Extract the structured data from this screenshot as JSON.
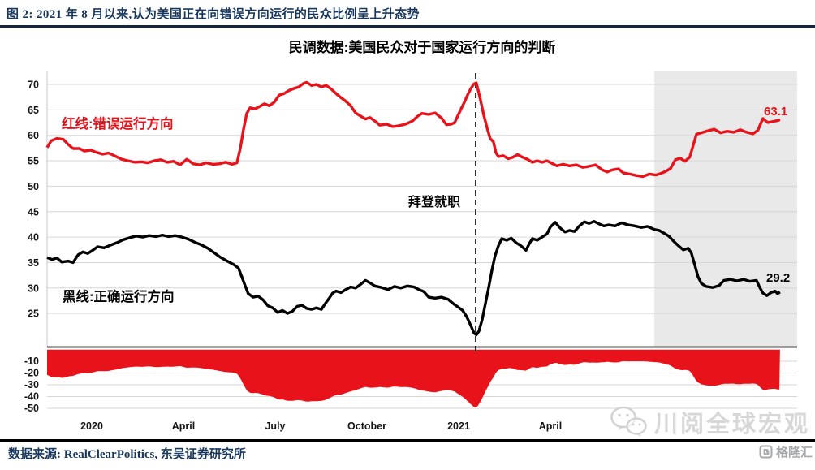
{
  "figure": {
    "caption": "图 2:  2021 年 8 月以来,认为美国正在向错误方向运行的民众比例呈上升态势",
    "chart_title": "民调数据:美国民众对于国家运行方向的判断",
    "source": "数据来源: RealClearPolitics, 东吴证券研究所",
    "watermark_text": "川阅全球宏观",
    "logo_text": "格隆汇"
  },
  "colors": {
    "red": "#e8121a",
    "black": "#000000",
    "navy": "#17375e",
    "grid": "#d6d6d6",
    "axis_gray": "#c9c9c9",
    "zero_line": "#4a4a4a",
    "region": "#e9e9e9",
    "watermark": "#d7d7d7",
    "logo_gray": "#97999c"
  },
  "chart_data": {
    "type": "line",
    "title": "民调数据:美国民众对于国家运行方向的判断",
    "x_axis": {
      "tick_labels": [
        "2020",
        "April",
        "July",
        "October",
        "2021",
        "April"
      ],
      "tick_positions_months": [
        0,
        3,
        6,
        9,
        12,
        15
      ],
      "range_months": [
        -1.46,
        23.07
      ],
      "note_unit": "months since Jan 2020"
    },
    "y_axis_upper": {
      "ticks": [
        70,
        65,
        60,
        55,
        50,
        45,
        40,
        35,
        30,
        25
      ],
      "range": [
        18.5,
        72.5
      ],
      "unit": "%"
    },
    "y_axis_lower": {
      "ticks": [
        -10,
        -20,
        -30,
        -40,
        -50
      ],
      "range": [
        -55,
        0
      ],
      "unit": "%"
    },
    "annotation": {
      "text": "拜登就职",
      "x_months": 12.56
    },
    "highlight_region": {
      "start_months": 18.4,
      "end_months": 23.07
    },
    "legend_position": "in-plot text labels",
    "grid": true,
    "series": [
      {
        "name": "红线:错误运行方向",
        "color_key": "red",
        "end_label": "63.1",
        "points": [
          [
            -1.46,
            57.6
          ],
          [
            -1.33,
            58.9
          ],
          [
            -1.14,
            59.4
          ],
          [
            -0.93,
            59.2
          ],
          [
            -0.77,
            58.2
          ],
          [
            -0.61,
            57.4
          ],
          [
            -0.4,
            57.4
          ],
          [
            -0.24,
            56.9
          ],
          [
            -0.03,
            57.1
          ],
          [
            0.13,
            56.7
          ],
          [
            0.35,
            56.3
          ],
          [
            0.56,
            56.5
          ],
          [
            0.77,
            55.9
          ],
          [
            0.98,
            55.3
          ],
          [
            1.19,
            55.0
          ],
          [
            1.41,
            54.7
          ],
          [
            1.62,
            54.8
          ],
          [
            1.83,
            54.6
          ],
          [
            2.04,
            55.0
          ],
          [
            2.26,
            55.2
          ],
          [
            2.47,
            54.7
          ],
          [
            2.68,
            54.9
          ],
          [
            2.89,
            54.2
          ],
          [
            3.11,
            55.3
          ],
          [
            3.32,
            54.4
          ],
          [
            3.53,
            54.2
          ],
          [
            3.74,
            54.6
          ],
          [
            3.96,
            54.3
          ],
          [
            4.17,
            54.4
          ],
          [
            4.38,
            54.7
          ],
          [
            4.59,
            54.3
          ],
          [
            4.75,
            54.6
          ],
          [
            4.86,
            57.5
          ],
          [
            4.96,
            61.0
          ],
          [
            5.07,
            64.3
          ],
          [
            5.18,
            65.4
          ],
          [
            5.34,
            65.2
          ],
          [
            5.5,
            65.7
          ],
          [
            5.65,
            66.2
          ],
          [
            5.81,
            65.8
          ],
          [
            5.97,
            66.5
          ],
          [
            6.13,
            67.9
          ],
          [
            6.29,
            68.2
          ],
          [
            6.45,
            68.8
          ],
          [
            6.61,
            69.2
          ],
          [
            6.77,
            69.5
          ],
          [
            6.93,
            70.2
          ],
          [
            7.03,
            70.4
          ],
          [
            7.19,
            69.8
          ],
          [
            7.35,
            70.0
          ],
          [
            7.51,
            69.5
          ],
          [
            7.67,
            69.8
          ],
          [
            7.83,
            69.1
          ],
          [
            7.99,
            68.2
          ],
          [
            8.15,
            67.4
          ],
          [
            8.31,
            66.7
          ],
          [
            8.47,
            65.8
          ],
          [
            8.63,
            64.4
          ],
          [
            8.79,
            63.8
          ],
          [
            8.95,
            63.2
          ],
          [
            9.1,
            63.5
          ],
          [
            9.26,
            62.8
          ],
          [
            9.42,
            62.0
          ],
          [
            9.64,
            62.2
          ],
          [
            9.85,
            61.7
          ],
          [
            10.06,
            61.9
          ],
          [
            10.27,
            62.2
          ],
          [
            10.49,
            62.8
          ],
          [
            10.65,
            63.7
          ],
          [
            10.8,
            64.3
          ],
          [
            11.02,
            64.1
          ],
          [
            11.23,
            64.4
          ],
          [
            11.44,
            63.4
          ],
          [
            11.6,
            62.1
          ],
          [
            11.76,
            62.2
          ],
          [
            11.87,
            62.5
          ],
          [
            11.97,
            63.8
          ],
          [
            12.08,
            65.2
          ],
          [
            12.19,
            66.5
          ],
          [
            12.29,
            67.9
          ],
          [
            12.4,
            69.2
          ],
          [
            12.5,
            70.1
          ],
          [
            12.58,
            70.3
          ],
          [
            12.66,
            68.3
          ],
          [
            12.74,
            66.2
          ],
          [
            12.82,
            64.0
          ],
          [
            12.93,
            61.5
          ],
          [
            13.03,
            59.4
          ],
          [
            13.14,
            58.7
          ],
          [
            13.22,
            56.6
          ],
          [
            13.3,
            55.8
          ],
          [
            13.46,
            56.0
          ],
          [
            13.62,
            55.4
          ],
          [
            13.77,
            55.7
          ],
          [
            13.93,
            56.2
          ],
          [
            14.09,
            55.7
          ],
          [
            14.25,
            55.3
          ],
          [
            14.41,
            54.7
          ],
          [
            14.57,
            55.0
          ],
          [
            14.73,
            54.7
          ],
          [
            14.89,
            55.0
          ],
          [
            15.05,
            54.5
          ],
          [
            15.21,
            54.0
          ],
          [
            15.42,
            54.3
          ],
          [
            15.63,
            54.0
          ],
          [
            15.85,
            54.2
          ],
          [
            16.06,
            53.7
          ],
          [
            16.27,
            53.9
          ],
          [
            16.48,
            54.2
          ],
          [
            16.7,
            53.2
          ],
          [
            16.86,
            52.8
          ],
          [
            17.02,
            53.2
          ],
          [
            17.23,
            53.4
          ],
          [
            17.39,
            52.6
          ],
          [
            17.6,
            52.4
          ],
          [
            17.81,
            52.1
          ],
          [
            18.02,
            51.9
          ],
          [
            18.24,
            52.4
          ],
          [
            18.45,
            52.2
          ],
          [
            18.61,
            52.5
          ],
          [
            18.77,
            52.9
          ],
          [
            18.93,
            53.5
          ],
          [
            19.09,
            55.2
          ],
          [
            19.25,
            55.5
          ],
          [
            19.4,
            54.9
          ],
          [
            19.56,
            55.7
          ],
          [
            19.67,
            58.0
          ],
          [
            19.78,
            60.2
          ],
          [
            19.94,
            60.5
          ],
          [
            20.15,
            60.9
          ],
          [
            20.36,
            61.2
          ],
          [
            20.57,
            60.5
          ],
          [
            20.78,
            60.8
          ],
          [
            21.0,
            60.6
          ],
          [
            21.21,
            61.1
          ],
          [
            21.42,
            60.6
          ],
          [
            21.63,
            60.3
          ],
          [
            21.79,
            61.0
          ],
          [
            21.95,
            63.3
          ],
          [
            22.11,
            62.5
          ],
          [
            22.27,
            62.7
          ],
          [
            22.43,
            62.9
          ],
          [
            22.51,
            63.1
          ]
        ]
      },
      {
        "name": "黑线:正确运行方向",
        "color_key": "black",
        "end_label": "29.2",
        "points": [
          [
            -1.46,
            36.0
          ],
          [
            -1.3,
            35.6
          ],
          [
            -1.14,
            35.9
          ],
          [
            -0.98,
            35.1
          ],
          [
            -0.77,
            35.3
          ],
          [
            -0.61,
            35.0
          ],
          [
            -0.45,
            36.5
          ],
          [
            -0.29,
            37.1
          ],
          [
            -0.13,
            36.8
          ],
          [
            0.03,
            37.4
          ],
          [
            0.19,
            38.1
          ],
          [
            0.4,
            37.9
          ],
          [
            0.61,
            38.4
          ],
          [
            0.82,
            38.9
          ],
          [
            1.04,
            39.5
          ],
          [
            1.25,
            39.9
          ],
          [
            1.46,
            40.2
          ],
          [
            1.67,
            40.0
          ],
          [
            1.88,
            40.3
          ],
          [
            2.1,
            40.1
          ],
          [
            2.31,
            40.4
          ],
          [
            2.52,
            40.1
          ],
          [
            2.73,
            40.3
          ],
          [
            2.95,
            40.0
          ],
          [
            3.16,
            39.6
          ],
          [
            3.37,
            39.0
          ],
          [
            3.58,
            38.5
          ],
          [
            3.8,
            37.8
          ],
          [
            4.01,
            36.9
          ],
          [
            4.22,
            36.0
          ],
          [
            4.43,
            35.3
          ],
          [
            4.65,
            34.6
          ],
          [
            4.8,
            33.9
          ],
          [
            4.91,
            32.2
          ],
          [
            5.02,
            30.4
          ],
          [
            5.12,
            28.9
          ],
          [
            5.28,
            28.2
          ],
          [
            5.44,
            28.4
          ],
          [
            5.6,
            27.7
          ],
          [
            5.76,
            26.5
          ],
          [
            5.92,
            26.1
          ],
          [
            6.08,
            25.2
          ],
          [
            6.24,
            25.6
          ],
          [
            6.4,
            25.0
          ],
          [
            6.56,
            25.4
          ],
          [
            6.72,
            26.4
          ],
          [
            6.88,
            26.6
          ],
          [
            7.03,
            26.0
          ],
          [
            7.19,
            25.8
          ],
          [
            7.35,
            26.1
          ],
          [
            7.51,
            25.8
          ],
          [
            7.67,
            27.2
          ],
          [
            7.78,
            28.1
          ],
          [
            7.88,
            29.0
          ],
          [
            7.99,
            29.4
          ],
          [
            8.15,
            29.1
          ],
          [
            8.31,
            29.7
          ],
          [
            8.47,
            30.2
          ],
          [
            8.63,
            30.0
          ],
          [
            8.79,
            30.7
          ],
          [
            8.95,
            31.5
          ],
          [
            9.1,
            31.0
          ],
          [
            9.26,
            30.4
          ],
          [
            9.48,
            30.1
          ],
          [
            9.69,
            29.7
          ],
          [
            9.9,
            30.3
          ],
          [
            10.11,
            30.0
          ],
          [
            10.33,
            30.4
          ],
          [
            10.54,
            30.2
          ],
          [
            10.7,
            29.7
          ],
          [
            10.86,
            29.3
          ],
          [
            11.02,
            28.2
          ],
          [
            11.23,
            28.0
          ],
          [
            11.44,
            28.2
          ],
          [
            11.65,
            27.8
          ],
          [
            11.81,
            27.0
          ],
          [
            11.97,
            26.3
          ],
          [
            12.13,
            25.6
          ],
          [
            12.26,
            24.4
          ],
          [
            12.4,
            22.6
          ],
          [
            12.5,
            21.2
          ],
          [
            12.58,
            20.8
          ],
          [
            12.66,
            21.5
          ],
          [
            12.77,
            23.8
          ],
          [
            12.87,
            26.8
          ],
          [
            12.98,
            30.0
          ],
          [
            13.09,
            33.5
          ],
          [
            13.19,
            36.3
          ],
          [
            13.3,
            38.3
          ],
          [
            13.41,
            39.7
          ],
          [
            13.57,
            39.4
          ],
          [
            13.72,
            39.8
          ],
          [
            13.88,
            38.9
          ],
          [
            14.04,
            38.3
          ],
          [
            14.2,
            37.4
          ],
          [
            14.31,
            38.7
          ],
          [
            14.41,
            39.7
          ],
          [
            14.57,
            39.4
          ],
          [
            14.73,
            40.0
          ],
          [
            14.89,
            40.6
          ],
          [
            15.0,
            42.0
          ],
          [
            15.16,
            42.9
          ],
          [
            15.32,
            41.8
          ],
          [
            15.48,
            41.0
          ],
          [
            15.63,
            41.3
          ],
          [
            15.79,
            41.1
          ],
          [
            15.95,
            42.2
          ],
          [
            16.11,
            43.0
          ],
          [
            16.27,
            42.7
          ],
          [
            16.43,
            43.1
          ],
          [
            16.59,
            42.6
          ],
          [
            16.75,
            42.2
          ],
          [
            16.91,
            42.4
          ],
          [
            17.12,
            42.2
          ],
          [
            17.33,
            42.8
          ],
          [
            17.55,
            42.4
          ],
          [
            17.76,
            42.2
          ],
          [
            17.97,
            41.9
          ],
          [
            18.18,
            42.1
          ],
          [
            18.4,
            41.5
          ],
          [
            18.56,
            41.3
          ],
          [
            18.71,
            40.8
          ],
          [
            18.87,
            40.2
          ],
          [
            19.03,
            39.2
          ],
          [
            19.19,
            38.3
          ],
          [
            19.35,
            37.5
          ],
          [
            19.51,
            37.8
          ],
          [
            19.61,
            36.9
          ],
          [
            19.72,
            34.6
          ],
          [
            19.83,
            32.2
          ],
          [
            19.94,
            30.9
          ],
          [
            20.1,
            30.3
          ],
          [
            20.31,
            30.1
          ],
          [
            20.52,
            30.5
          ],
          [
            20.68,
            31.5
          ],
          [
            20.89,
            31.7
          ],
          [
            21.1,
            31.4
          ],
          [
            21.32,
            31.7
          ],
          [
            21.53,
            31.3
          ],
          [
            21.74,
            31.5
          ],
          [
            21.85,
            30.1
          ],
          [
            21.95,
            29.0
          ],
          [
            22.08,
            28.5
          ],
          [
            22.22,
            29.1
          ],
          [
            22.35,
            29.4
          ],
          [
            22.43,
            28.9
          ],
          [
            22.51,
            29.2
          ]
        ]
      }
    ],
    "lower_panel": {
      "description": "spread = 正确运行方向 - 错误运行方向 (filled area from 0 downward)",
      "fill_color_key": "red",
      "computed_from": "series[1] minus series[0]"
    }
  }
}
